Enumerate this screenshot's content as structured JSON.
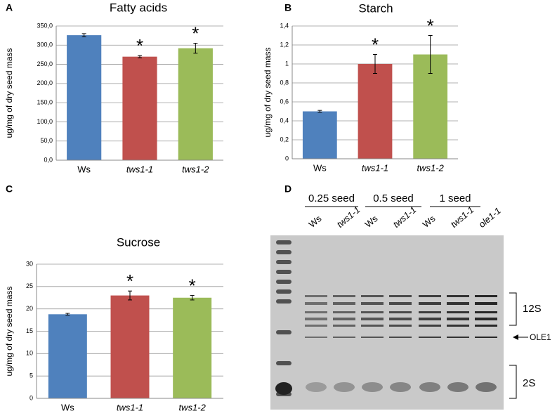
{
  "chart_data": [
    {
      "type": "bar",
      "panel": "A",
      "title": "Fatty acids",
      "y_label": "ug/mg of dry seed mass",
      "categories": [
        "Ws",
        "tws1-1",
        "tws1-2"
      ],
      "values": [
        326,
        270,
        292
      ],
      "errors": [
        4,
        3,
        13
      ],
      "annotations": [
        null,
        "*",
        "*"
      ],
      "colors": [
        "#4f81bd",
        "#c0504d",
        "#9bbb59"
      ],
      "ylim": [
        0,
        350
      ],
      "yticks": [
        {
          "value": 0,
          "label": "0,0"
        },
        {
          "value": 50,
          "label": "50,0"
        },
        {
          "value": 100,
          "label": "100,0"
        },
        {
          "value": 150,
          "label": "150,0"
        },
        {
          "value": 200,
          "label": "200,0"
        },
        {
          "value": 250,
          "label": "250,0"
        },
        {
          "value": 300,
          "label": "300,0"
        },
        {
          "value": 350,
          "label": "350,0"
        }
      ],
      "grid": true
    },
    {
      "type": "bar",
      "panel": "B",
      "title": "Starch",
      "y_label": "ug/mg of dry seed mass",
      "categories": [
        "Ws",
        "tws1-1",
        "tws1-2"
      ],
      "values": [
        0.5,
        1.0,
        1.1
      ],
      "errors": [
        0.01,
        0.1,
        0.2
      ],
      "annotations": [
        null,
        "*",
        "*"
      ],
      "colors": [
        "#4f81bd",
        "#c0504d",
        "#9bbb59"
      ],
      "ylim": [
        0,
        1.4
      ],
      "yticks": [
        0,
        {
          "value": 0.2,
          "label": "0,2"
        },
        {
          "value": 0.4,
          "label": "0,4"
        },
        {
          "value": 0.6,
          "label": "0,6"
        },
        {
          "value": 0.8,
          "label": "0,8"
        },
        1,
        {
          "value": 1.2,
          "label": "1,2"
        },
        {
          "value": 1.4,
          "label": "1,4"
        }
      ],
      "grid": true
    },
    {
      "type": "bar",
      "panel": "C",
      "title": "Sucrose",
      "y_label": "ug/mg of dry seed mass",
      "categories": [
        "Ws",
        "tws1-1",
        "tws1-2"
      ],
      "values": [
        18.8,
        23,
        22.5
      ],
      "errors": [
        0.2,
        1,
        0.5
      ],
      "annotations": [
        null,
        "*",
        "*"
      ],
      "colors": [
        "#4f81bd",
        "#c0504d",
        "#9bbb59"
      ],
      "ylim": [
        0,
        30
      ],
      "yticks": [
        0,
        5,
        10,
        15,
        20,
        25,
        30
      ],
      "grid": true
    }
  ],
  "gel": {
    "panel": "D",
    "groups": [
      "0.25 seed",
      "0.5 seed",
      "1 seed"
    ],
    "lanes": [
      "Ws",
      "tws1-1",
      "Ws",
      "tws1-1",
      "Ws",
      "tws1-1",
      "ole1-1"
    ],
    "bands": [
      "12S",
      "OLE1",
      "2S"
    ]
  }
}
